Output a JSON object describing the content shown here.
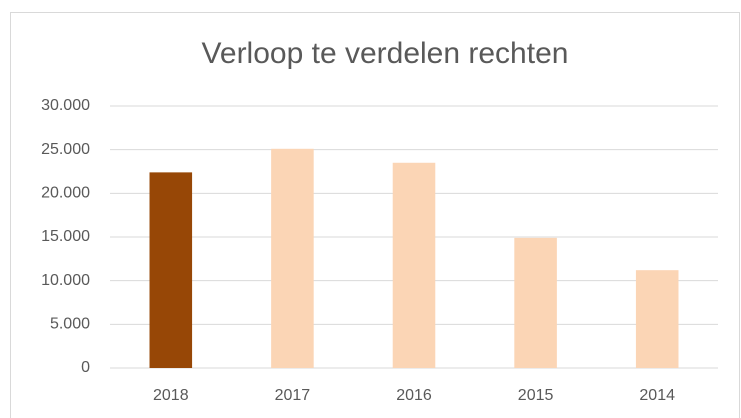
{
  "chart_data": {
    "type": "bar",
    "title": "Verloop te verdelen rechten",
    "categories": [
      "2018",
      "2017",
      "2016",
      "2015",
      "2014"
    ],
    "values": [
      22400,
      25100,
      23500,
      14900,
      11200
    ],
    "colors": [
      "#974706",
      "#fbd5b5",
      "#fbd5b5",
      "#fbd5b5",
      "#fbd5b5"
    ],
    "ylim": [
      0,
      30000
    ],
    "yticks": [
      0,
      {
        "value": 5000,
        "label": "5.000"
      },
      {
        "value": 10000,
        "label": "10.000"
      },
      {
        "value": 15000,
        "label": "15.000"
      },
      {
        "value": 20000,
        "label": "20.000"
      },
      {
        "value": 25000,
        "label": "25.000"
      },
      {
        "value": 30000,
        "label": "30.000"
      }
    ],
    "grid": true
  }
}
